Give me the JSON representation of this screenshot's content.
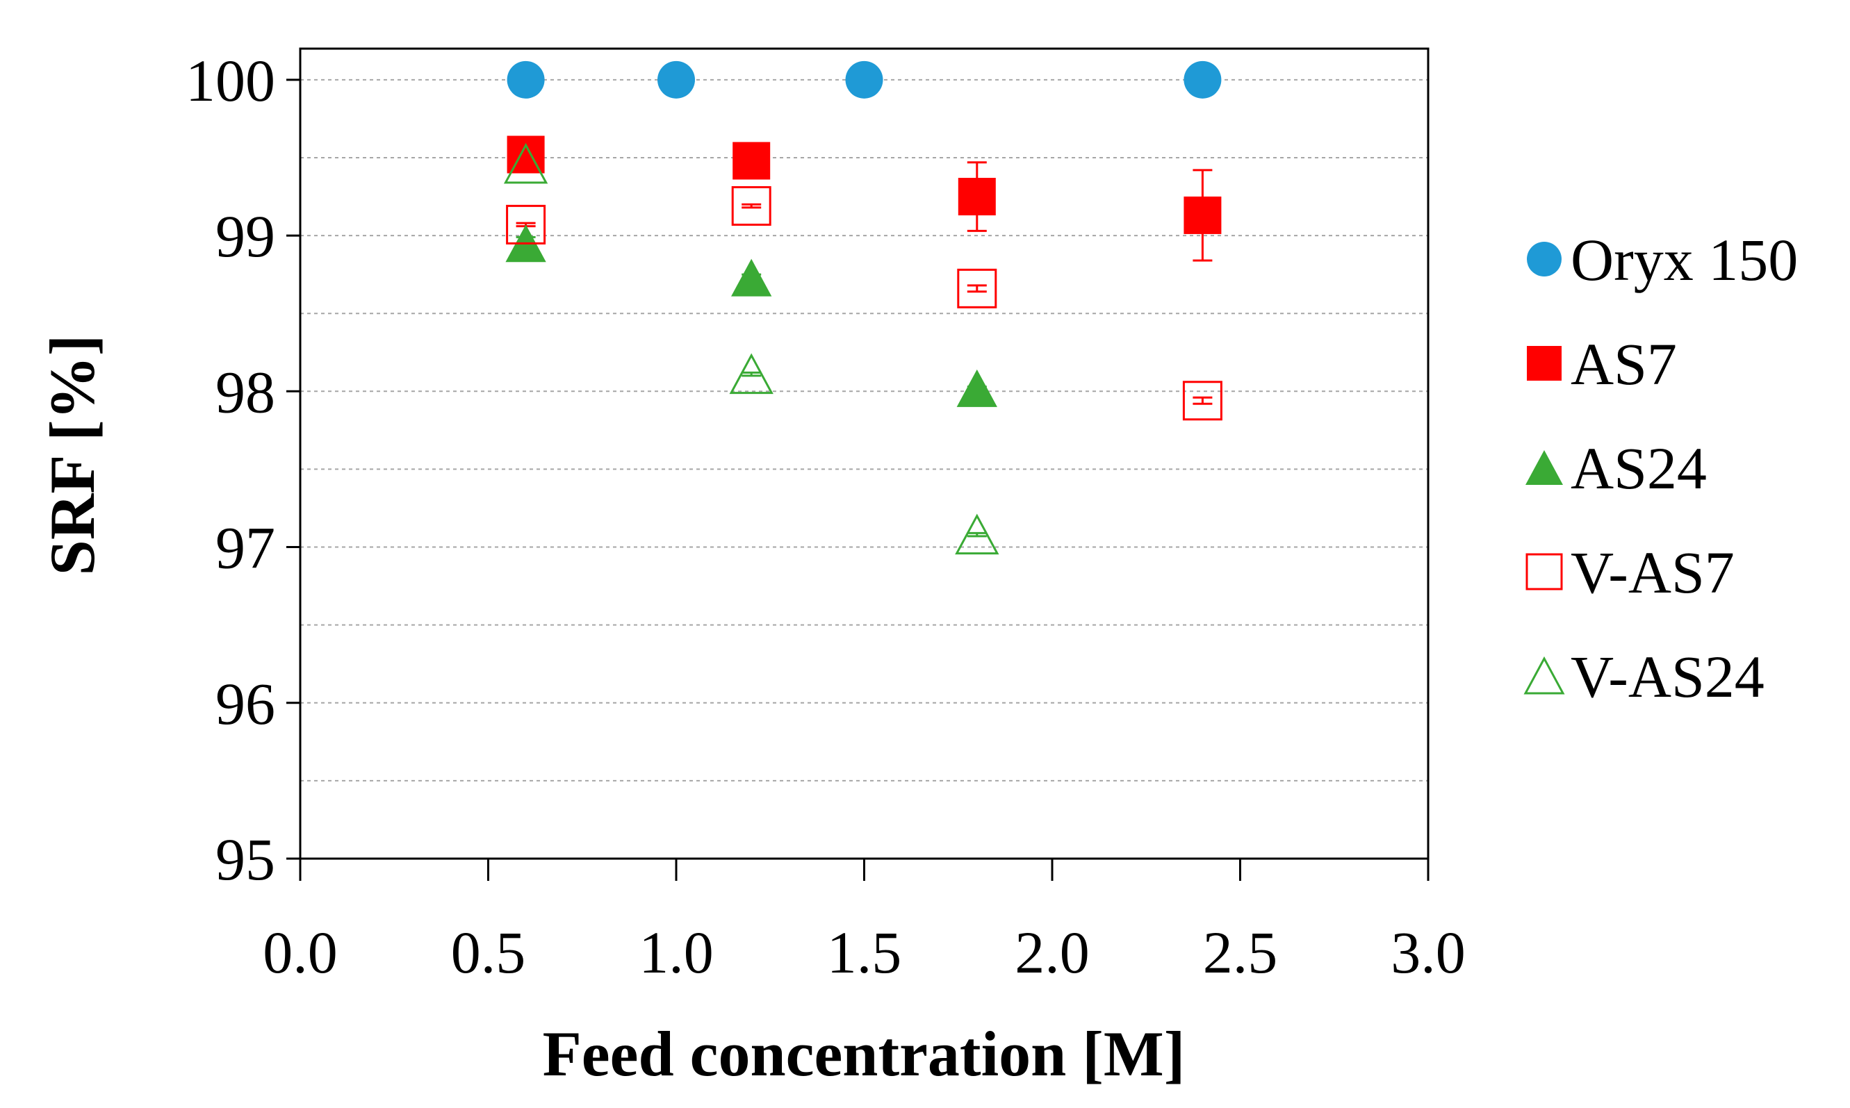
{
  "chart_data": {
    "type": "scatter",
    "xlabel": "Feed concentration  [M]",
    "ylabel": "SRF [%]",
    "xlim": [
      0,
      3
    ],
    "ylim": [
      95,
      100.2
    ],
    "x_ticks": [
      "0.0",
      "0.5",
      "1.0",
      "1.5",
      "2.0",
      "2.5",
      "3.0"
    ],
    "x_tick_values": [
      0,
      0.5,
      1,
      1.5,
      2,
      2.5,
      3
    ],
    "y_ticks": [
      "95",
      "96",
      "97",
      "98",
      "99",
      "100"
    ],
    "y_tick_values": [
      95,
      96,
      97,
      98,
      99,
      100
    ],
    "minor_gridlines": [
      95.5,
      96.5,
      97.5,
      98.5,
      99.5
    ],
    "grid": "horizontal dashed",
    "legend_position": "right",
    "series": [
      {
        "name": "Oryx 150",
        "marker": "circle-filled",
        "color": "#1f9ad6",
        "x": [
          0.6,
          1.0,
          1.5,
          2.4
        ],
        "y": [
          100,
          100,
          100,
          100
        ],
        "err": [
          0,
          0,
          0,
          0
        ]
      },
      {
        "name": "AS7",
        "marker": "square-filled",
        "color": "#ff0000",
        "x": [
          0.6,
          1.2,
          1.8,
          2.4
        ],
        "y": [
          99.52,
          99.48,
          99.25,
          99.13
        ],
        "err": [
          0.02,
          0.02,
          0.22,
          0.29
        ]
      },
      {
        "name": "AS24",
        "marker": "triangle-filled",
        "color": "#3aaa35",
        "x": [
          0.6,
          1.2,
          1.8
        ],
        "y": [
          98.95,
          98.73,
          98.02
        ],
        "err": [
          0.04,
          0.02,
          0.01
        ]
      },
      {
        "name": "V-AS7",
        "marker": "square-open",
        "color": "#ff0000",
        "x": [
          0.6,
          1.2,
          1.8,
          2.4
        ],
        "y": [
          99.07,
          99.19,
          98.66,
          97.94
        ],
        "err": [
          0.01,
          0.01,
          0.02,
          0.02
        ]
      },
      {
        "name": "V-AS24",
        "marker": "triangle-open",
        "color": "#3aaa35",
        "x": [
          0.6,
          1.2,
          1.8
        ],
        "y": [
          99.46,
          98.11,
          97.08
        ],
        "err": [
          0.01,
          0.01,
          0.01
        ]
      }
    ]
  }
}
